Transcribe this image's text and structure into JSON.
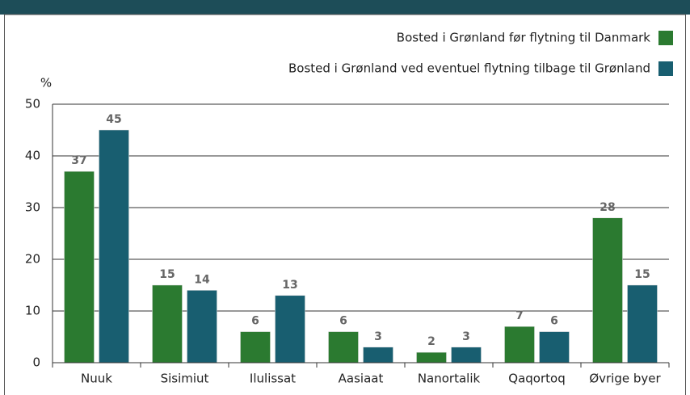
{
  "chart_data": {
    "type": "bar",
    "y_unit": "%",
    "categories": [
      "Nuuk",
      "Sisimiut",
      "Ilulissat",
      "Aasiaat",
      "Nanortalik",
      "Qaqortoq",
      "Øvrige byer"
    ],
    "series": [
      {
        "name": "Bosted i Grønland før flytning til Danmark",
        "color": "#2b7a30",
        "values": [
          37,
          15,
          6,
          6,
          2,
          7,
          28
        ]
      },
      {
        "name": "Bosted i Grønland ved eventuel flytning tilbage til Grønland",
        "color": "#185e70",
        "values": [
          45,
          14,
          13,
          3,
          3,
          6,
          15
        ]
      }
    ],
    "ylim": [
      0,
      50
    ],
    "yticks": [
      0,
      10,
      20,
      30,
      40,
      50
    ],
    "grid": true,
    "legend": "top-right"
  }
}
